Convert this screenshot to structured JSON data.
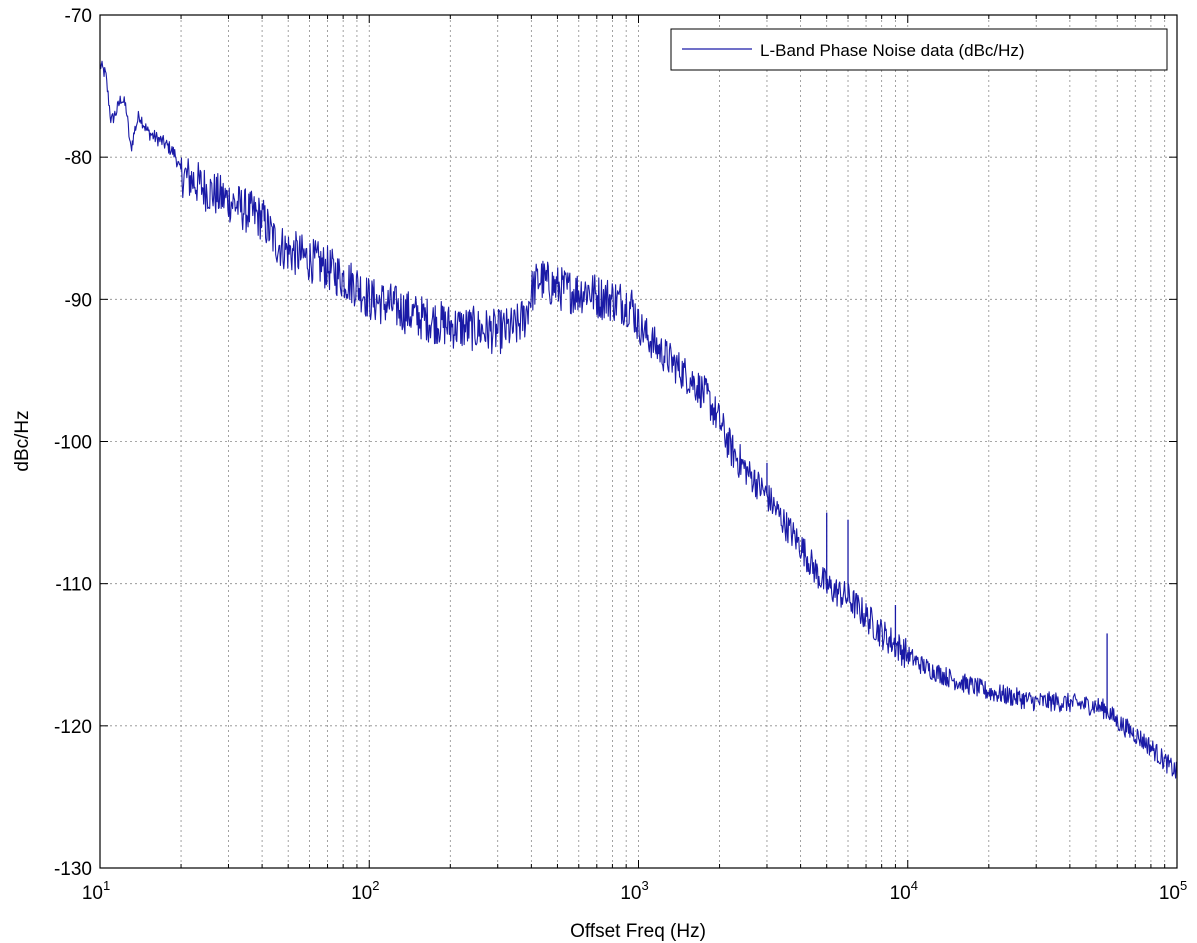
{
  "chart_data": {
    "type": "line",
    "title": "",
    "xlabel": "Offset Freq (Hz)",
    "ylabel": "dBc/Hz",
    "xscale": "log",
    "xlim": [
      10,
      100000
    ],
    "ylim": [
      -130,
      -70
    ],
    "grid": true,
    "legend_position": "top-right",
    "x_ticks": [
      {
        "value": 10,
        "base": "10",
        "exp": "1"
      },
      {
        "value": 100,
        "base": "10",
        "exp": "2"
      },
      {
        "value": 1000,
        "base": "10",
        "exp": "3"
      },
      {
        "value": 10000,
        "base": "10",
        "exp": "4"
      },
      {
        "value": 100000,
        "base": "10",
        "exp": "5"
      }
    ],
    "y_ticks": [
      {
        "value": -70,
        "label": "-70"
      },
      {
        "value": -80,
        "label": "-80"
      },
      {
        "value": -90,
        "label": "-90"
      },
      {
        "value": -100,
        "label": "-100"
      },
      {
        "value": -110,
        "label": "-110"
      },
      {
        "value": -120,
        "label": "-120"
      },
      {
        "value": -130,
        "label": "-130"
      }
    ],
    "series": [
      {
        "name": "L-Band Phase Noise data (dBc/Hz)",
        "color": "#1a1aa6",
        "x": [
          10,
          10.5,
          11,
          11.5,
          12,
          12.5,
          13,
          13.5,
          14,
          15,
          16,
          17,
          18,
          19,
          20,
          22,
          25,
          28,
          30,
          35,
          40,
          45,
          50,
          55,
          60,
          70,
          80,
          90,
          100,
          120,
          150,
          180,
          200,
          250,
          300,
          350,
          380,
          400,
          430,
          450,
          500,
          550,
          600,
          650,
          700,
          800,
          900,
          950,
          1000,
          1100,
          1200,
          1400,
          1600,
          1800,
          2000,
          2200,
          2500,
          3000,
          3500,
          4000,
          4500,
          5000,
          6000,
          7000,
          8000,
          9000,
          10000,
          11000,
          12000,
          15000,
          20000,
          25000,
          30000,
          35000,
          40000,
          50000,
          55000,
          60000,
          70000,
          80000,
          90000,
          100000
        ],
        "y": [
          -73.5,
          -74.2,
          -77.5,
          -76.8,
          -75.8,
          -76.5,
          -79.5,
          -78.0,
          -77.0,
          -78.2,
          -78.6,
          -78.9,
          -79.3,
          -79.8,
          -81.2,
          -81.6,
          -82.3,
          -82.8,
          -83.0,
          -83.8,
          -84.3,
          -86.0,
          -86.6,
          -86.9,
          -87.2,
          -87.8,
          -88.5,
          -89.0,
          -90.0,
          -90.4,
          -91.2,
          -91.6,
          -91.9,
          -92.1,
          -92.3,
          -92.0,
          -91.2,
          -89.5,
          -88.5,
          -88.8,
          -89.2,
          -89.4,
          -89.5,
          -89.3,
          -89.8,
          -90.0,
          -90.3,
          -90.5,
          -91.8,
          -92.8,
          -93.6,
          -94.8,
          -95.8,
          -96.9,
          -98.6,
          -100.5,
          -102.0,
          -103.8,
          -105.8,
          -107.3,
          -109.0,
          -110.2,
          -111.0,
          -112.3,
          -113.5,
          -114.3,
          -115.0,
          -115.6,
          -116.0,
          -116.8,
          -117.6,
          -118.0,
          -118.3,
          -118.3,
          -118.4,
          -118.6,
          -118.9,
          -119.7,
          -120.6,
          -121.5,
          -122.5,
          -123.3
        ]
      }
    ],
    "spurs": [
      {
        "x": 2700,
        "peak": -102.0
      },
      {
        "x": 3000,
        "peak": -101.5
      },
      {
        "x": 5000,
        "peak": -105.0
      },
      {
        "x": 6000,
        "peak": -105.5
      },
      {
        "x": 9000,
        "peak": -111.5
      },
      {
        "x": 55000,
        "peak": -113.5
      }
    ]
  }
}
